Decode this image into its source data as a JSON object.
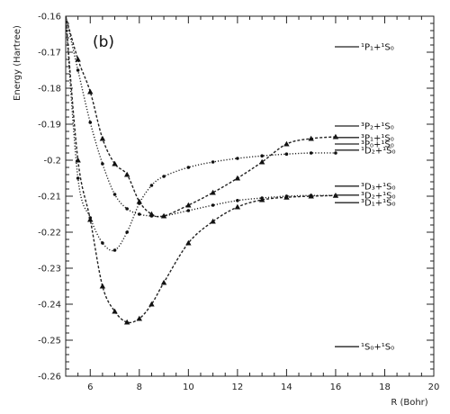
{
  "chart_data": {
    "type": "line",
    "panel_label": "(b)",
    "xlabel": "R (Bohr)",
    "ylabel": "Energy (Hartree)",
    "xlim": [
      5,
      20
    ],
    "ylim": [
      -0.26,
      -0.16
    ],
    "xticks": [
      6,
      8,
      10,
      12,
      14,
      16,
      18,
      20
    ],
    "yticks": [
      -0.16,
      -0.17,
      -0.18,
      -0.19,
      -0.2,
      -0.21,
      -0.22,
      -0.23,
      -0.24,
      -0.25,
      -0.26
    ],
    "ytick_labels": [
      "-0.16",
      "-0.17",
      "-0.18",
      "-0.19",
      "-0.2",
      "-0.21",
      "-0.22",
      "-0.23",
      "-0.24",
      "-0.25",
      "-0.26"
    ],
    "grid": false,
    "series": [
      {
        "marker": "circle",
        "line_style": "dotted",
        "x": [
          5,
          5.5,
          6,
          6.5,
          7,
          7.5,
          8,
          8.5,
          9,
          10,
          11,
          12,
          13,
          14,
          15,
          16
        ],
        "y": [
          -0.16,
          -0.205,
          -0.216,
          -0.223,
          -0.225,
          -0.22,
          -0.212,
          -0.207,
          -0.2045,
          -0.202,
          -0.2005,
          -0.1995,
          -0.1988,
          -0.1983,
          -0.198,
          -0.198
        ]
      },
      {
        "marker": "triangle",
        "line_style": "dashed",
        "x": [
          5,
          5.5,
          6,
          6.5,
          7,
          7.5,
          8,
          8.5,
          9,
          10,
          11,
          12,
          13,
          14,
          15,
          16
        ],
        "y": [
          -0.16,
          -0.2,
          -0.2165,
          -0.235,
          -0.242,
          -0.245,
          -0.244,
          -0.24,
          -0.234,
          -0.223,
          -0.217,
          -0.213,
          -0.211,
          -0.2103,
          -0.21,
          -0.2098
        ]
      },
      {
        "marker": "triangle",
        "line_style": "dashed",
        "x": [
          5,
          5.5,
          6,
          6.5,
          7,
          7.5,
          8,
          8.5,
          9,
          10,
          11,
          12,
          13,
          14,
          15,
          16
        ],
        "y": [
          -0.16,
          -0.172,
          -0.181,
          -0.194,
          -0.201,
          -0.204,
          -0.2115,
          -0.215,
          -0.2155,
          -0.2125,
          -0.209,
          -0.205,
          -0.2005,
          -0.1955,
          -0.194,
          -0.1935
        ]
      },
      {
        "marker": "circle",
        "line_style": "dotted",
        "x": [
          5,
          5.5,
          6,
          6.5,
          7,
          7.5,
          8,
          8.5,
          9,
          10,
          11,
          12,
          13,
          14,
          15,
          16
        ],
        "y": [
          -0.16,
          -0.175,
          -0.1895,
          -0.201,
          -0.2095,
          -0.2135,
          -0.215,
          -0.2155,
          -0.2155,
          -0.214,
          -0.2125,
          -0.2112,
          -0.2105,
          -0.21,
          -0.2098,
          -0.2098
        ]
      }
    ],
    "asymptotes": [
      {
        "label": "¹P₁+¹S₀",
        "y": -0.1685
      },
      {
        "label": "³P₂+¹S₀",
        "y": -0.1905
      },
      {
        "label": "³P₁+¹S₀",
        "y": -0.1937
      },
      {
        "label": "³P₀+¹S₀",
        "y": -0.1955
      },
      {
        "label": "¹D₂+¹S₀",
        "y": -0.1972
      },
      {
        "label": "³D₃+¹S₀",
        "y": -0.2072
      },
      {
        "label": "³D₂+¹S₀",
        "y": -0.2097
      },
      {
        "label": "³D₁+¹S₀",
        "y": -0.2118
      },
      {
        "label": "¹S₀+¹S₀",
        "y": -0.2518
      }
    ]
  }
}
